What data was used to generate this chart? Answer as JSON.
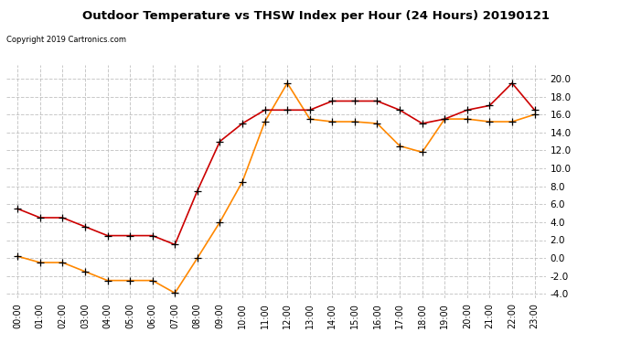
{
  "title": "Outdoor Temperature vs THSW Index per Hour (24 Hours) 20190121",
  "copyright": "Copyright 2019 Cartronics.com",
  "hours": [
    "00:00",
    "01:00",
    "02:00",
    "03:00",
    "04:00",
    "05:00",
    "06:00",
    "07:00",
    "08:00",
    "09:00",
    "10:00",
    "11:00",
    "12:00",
    "13:00",
    "14:00",
    "15:00",
    "16:00",
    "17:00",
    "18:00",
    "19:00",
    "20:00",
    "21:00",
    "22:00",
    "23:00"
  ],
  "temperature": [
    5.5,
    4.5,
    4.5,
    3.5,
    2.5,
    2.5,
    2.5,
    1.5,
    7.5,
    13.0,
    15.0,
    16.5,
    16.5,
    16.5,
    17.5,
    17.5,
    17.5,
    16.5,
    15.0,
    15.5,
    16.5,
    17.0,
    19.5,
    16.5
  ],
  "thsw": [
    0.2,
    -0.5,
    -0.5,
    -1.5,
    -2.5,
    -2.5,
    -2.5,
    -3.9,
    0.0,
    4.0,
    8.5,
    15.2,
    19.5,
    15.5,
    15.2,
    15.2,
    15.0,
    12.5,
    11.8,
    15.5,
    15.5,
    15.2,
    15.2,
    16.0
  ],
  "temp_color": "#cc0000",
  "thsw_color": "#ff8800",
  "ylim": [
    -4.5,
    21.5
  ],
  "yticks": [
    -4.0,
    -2.0,
    0.0,
    2.0,
    4.0,
    6.0,
    8.0,
    10.0,
    12.0,
    14.0,
    16.0,
    18.0,
    20.0
  ],
  "background_color": "#ffffff",
  "grid_color": "#bbbbbb",
  "legend_thsw_bg": "#ff8800",
  "legend_temp_bg": "#cc0000",
  "legend_text_color": "#ffffff"
}
